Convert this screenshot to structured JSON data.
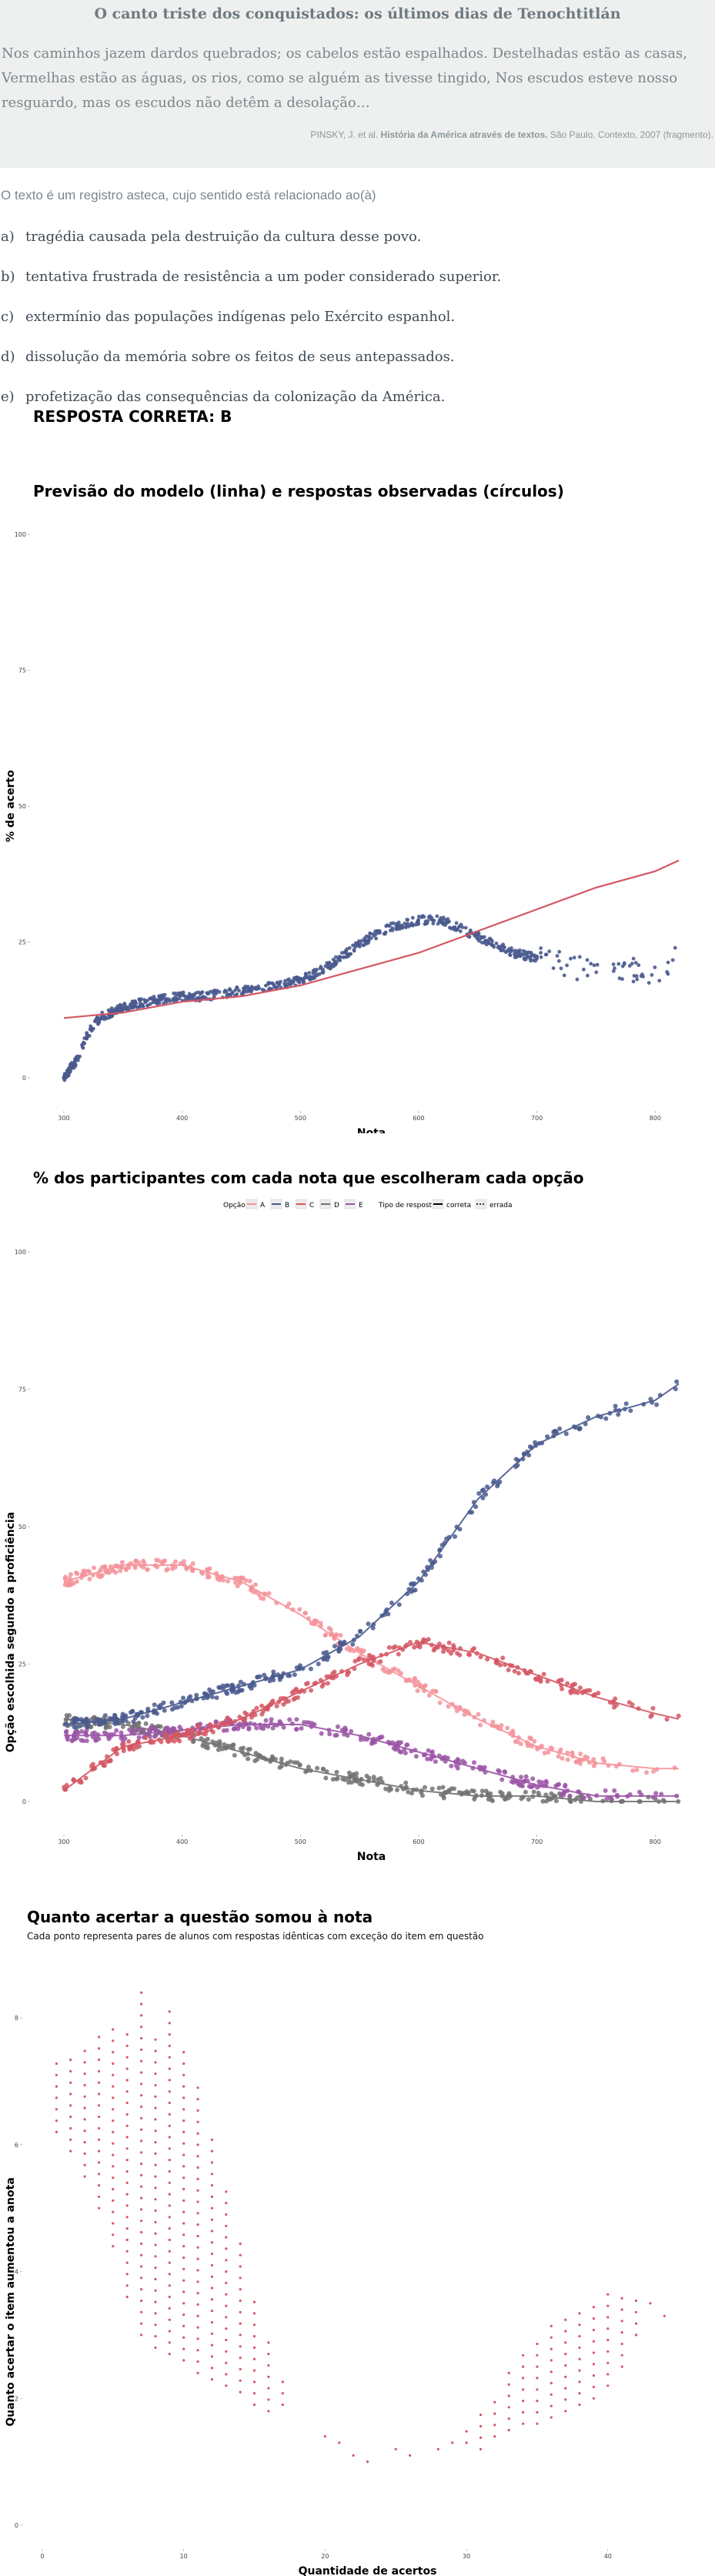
{
  "quote": {
    "title": "O canto triste dos conquistados: os últimos dias de Tenochtitlán",
    "text": "Nos caminhos jazem dardos quebrados; os cabelos estão espalhados. Destelhadas estão as casas, Vermelhas estão as águas, os rios, como se alguém as tivesse tingido, Nos escudos esteve nosso resguardo, mas os escudos não detêm a desolação…",
    "source_authors": "PINSKY, J. et al.",
    "source_title": "História da América através de textos.",
    "source_rest": "São Paulo. Contexto, 2007 (fragmento)."
  },
  "question": {
    "stem": "O texto é um registro asteca, cujo sentido está relacionado ao(à)",
    "options": [
      {
        "letter": "a)",
        "text": "tragédia causada pela destruição da cultura desse povo."
      },
      {
        "letter": "b)",
        "text": "tentativa frustrada de resistência a um poder considerado superior."
      },
      {
        "letter": "c)",
        "text": "extermínio das populações indígenas pelo Exército espanhol."
      },
      {
        "letter": "d)",
        "text": "dissolução da memória sobre os feitos de seus antepassados."
      },
      {
        "letter": "e)",
        "text": "profetização das consequências da colonização da América."
      }
    ],
    "correct_label": "RESPOSTA CORRETA: B"
  },
  "colors": {
    "blue": "#4a5a8e",
    "red": "#d45764",
    "pink": "#f5939b",
    "gray": "#727272",
    "purple": "#9b55a6"
  },
  "chart_data": [
    {
      "type": "scatter",
      "title": "Previsão do modelo (linha) e respostas observadas (círculos)",
      "xlabel": "Nota",
      "ylabel": "% de acerto",
      "xlim": [
        300,
        820
      ],
      "ylim": [
        0,
        100
      ],
      "xticks": [
        "300",
        "400",
        "500",
        "600",
        "700",
        "800"
      ],
      "yticks": [
        "0",
        "25",
        "50",
        "75",
        "100"
      ],
      "grid": false,
      "observed": {
        "x": [
          300,
          310,
          320,
          330,
          350,
          370,
          400,
          420,
          450,
          480,
          500,
          520,
          540,
          560,
          580,
          600,
          620,
          640,
          660,
          680,
          700,
          720,
          740,
          760,
          780,
          800,
          820
        ],
        "y": [
          0,
          3,
          8,
          11,
          13,
          14,
          15,
          15,
          16,
          17,
          18,
          20,
          23,
          26,
          28,
          29,
          29,
          27,
          25,
          23,
          22,
          21,
          20,
          20,
          20,
          19,
          23
        ]
      },
      "model": {
        "x": [
          300,
          350,
          400,
          450,
          500,
          550,
          600,
          650,
          700,
          750,
          800,
          820
        ],
        "y": [
          11,
          12,
          14,
          15,
          17,
          20,
          23,
          27,
          31,
          35,
          38,
          40
        ]
      }
    },
    {
      "type": "scatter",
      "title": "% dos participantes com cada nota que escolheram cada opção",
      "xlabel": "Nota",
      "ylabel": "Opção escolhida segundo a proficiência",
      "xlim": [
        300,
        820
      ],
      "ylim": [
        0,
        100
      ],
      "xticks": [
        "300",
        "400",
        "500",
        "600",
        "700",
        "800"
      ],
      "yticks": [
        "0",
        "25",
        "50",
        "75",
        "100"
      ],
      "legend": {
        "option_title": "Opção",
        "option_labels": [
          "A",
          "B",
          "C",
          "D",
          "E"
        ],
        "type_title": "Tipo de resposta",
        "type_labels": [
          "correta",
          "errada"
        ],
        "placement": "top"
      },
      "x": [
        300,
        350,
        400,
        450,
        500,
        550,
        600,
        650,
        700,
        750,
        800,
        820
      ],
      "series": [
        {
          "name": "A",
          "color": "pink",
          "values": [
            40,
            43,
            43,
            40,
            34,
            27,
            21,
            15,
            10,
            7,
            6,
            6
          ]
        },
        {
          "name": "B",
          "color": "blue",
          "values": [
            14,
            15,
            18,
            21,
            24,
            30,
            40,
            55,
            65,
            70,
            73,
            76
          ]
        },
        {
          "name": "C",
          "color": "red",
          "values": [
            2,
            10,
            12,
            15,
            20,
            25,
            29,
            27,
            23,
            19,
            16,
            15
          ]
        },
        {
          "name": "D",
          "color": "gray",
          "values": [
            15,
            14,
            12,
            9,
            6,
            4,
            2,
            1,
            1,
            0,
            0,
            0
          ]
        },
        {
          "name": "E",
          "color": "purple",
          "values": [
            12,
            12,
            13,
            14,
            14,
            12,
            9,
            6,
            3,
            1,
            1,
            1
          ]
        }
      ]
    },
    {
      "type": "scatter",
      "title": "Quanto acertar a questão somou à nota",
      "subtitle": "Cada ponto representa pares de alunos com respostas idênticas com exceção do item em questão",
      "xlabel": "Quantidade de acertos",
      "ylabel": "Quanto acertar o item aumentou a anota",
      "xlim": [
        0,
        46
      ],
      "ylim": [
        0,
        8.5
      ],
      "xticks": [
        "0",
        "10",
        "20",
        "30",
        "40"
      ],
      "yticks": [
        "0",
        "2",
        "4",
        "6",
        "8"
      ],
      "columns": [
        {
          "x": 1,
          "ymin": 6.2,
          "ymax": 7.3
        },
        {
          "x": 2,
          "ymin": 5.9,
          "ymax": 7.4
        },
        {
          "x": 3,
          "ymin": 5.5,
          "ymax": 7.5
        },
        {
          "x": 4,
          "ymin": 5.0,
          "ymax": 7.8
        },
        {
          "x": 5,
          "ymin": 4.4,
          "ymax": 7.9
        },
        {
          "x": 6,
          "ymin": 3.6,
          "ymax": 7.9
        },
        {
          "x": 7,
          "ymin": 3.0,
          "ymax": 8.4
        },
        {
          "x": 8,
          "ymin": 2.8,
          "ymax": 7.7
        },
        {
          "x": 9,
          "ymin": 2.7,
          "ymax": 8.2
        },
        {
          "x": 10,
          "ymin": 2.6,
          "ymax": 7.5
        },
        {
          "x": 11,
          "ymin": 2.4,
          "ymax": 6.9
        },
        {
          "x": 12,
          "ymin": 2.3,
          "ymax": 6.2
        },
        {
          "x": 13,
          "ymin": 2.2,
          "ymax": 5.4
        },
        {
          "x": 14,
          "ymin": 2.1,
          "ymax": 4.6
        },
        {
          "x": 15,
          "ymin": 1.9,
          "ymax": 3.6
        },
        {
          "x": 16,
          "ymin": 1.8,
          "ymax": 2.9
        },
        {
          "x": 17,
          "ymin": 1.9,
          "ymax": 2.4
        },
        {
          "x": 20,
          "ymin": 1.4,
          "ymax": 1.4
        },
        {
          "x": 21,
          "ymin": 1.3,
          "ymax": 1.3
        },
        {
          "x": 22,
          "ymin": 1.1,
          "ymax": 1.1
        },
        {
          "x": 23,
          "ymin": 1.0,
          "ymax": 1.0
        },
        {
          "x": 25,
          "ymin": 1.2,
          "ymax": 1.2
        },
        {
          "x": 26,
          "ymin": 1.1,
          "ymax": 1.1
        },
        {
          "x": 28,
          "ymin": 1.2,
          "ymax": 1.2
        },
        {
          "x": 29,
          "ymin": 1.3,
          "ymax": 1.4
        },
        {
          "x": 30,
          "ymin": 1.3,
          "ymax": 1.6
        },
        {
          "x": 31,
          "ymin": 1.2,
          "ymax": 1.8
        },
        {
          "x": 32,
          "ymin": 1.4,
          "ymax": 2.1
        },
        {
          "x": 33,
          "ymin": 1.5,
          "ymax": 2.5
        },
        {
          "x": 34,
          "ymin": 1.6,
          "ymax": 2.8
        },
        {
          "x": 35,
          "ymin": 1.6,
          "ymax": 3.0
        },
        {
          "x": 36,
          "ymin": 1.7,
          "ymax": 3.2
        },
        {
          "x": 37,
          "ymin": 1.8,
          "ymax": 3.4
        },
        {
          "x": 38,
          "ymin": 1.9,
          "ymax": 3.5
        },
        {
          "x": 39,
          "ymin": 2.0,
          "ymax": 3.6
        },
        {
          "x": 40,
          "ymin": 2.2,
          "ymax": 3.7
        },
        {
          "x": 41,
          "ymin": 2.5,
          "ymax": 3.6
        },
        {
          "x": 42,
          "ymin": 3.0,
          "ymax": 3.7
        },
        {
          "x": 43,
          "ymin": 3.5,
          "ymax": 3.6
        },
        {
          "x": 44,
          "ymin": 3.3,
          "ymax": 3.4
        }
      ]
    }
  ]
}
